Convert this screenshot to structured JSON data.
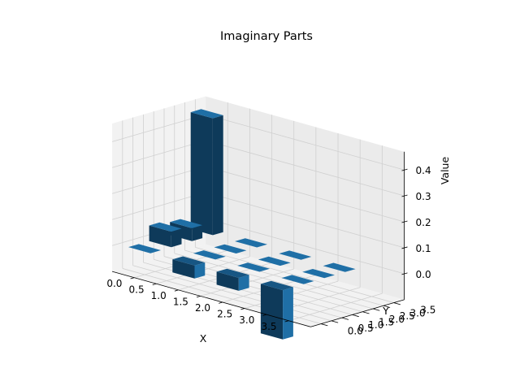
{
  "chart_data": {
    "type": "bar3d",
    "title": "Imaginary Parts",
    "xlabel": "X",
    "ylabel": "Y",
    "zlabel": "Value",
    "x_ticks": [
      "0.0",
      "0.5",
      "1.0",
      "1.5",
      "2.0",
      "2.5",
      "3.0",
      "3.5"
    ],
    "y_ticks": [
      "0.0",
      "0.5",
      "1.0",
      "1.5",
      "2.0",
      "2.5",
      "3.0",
      "3.5"
    ],
    "z_ticks": [
      "0.0",
      "0.1",
      "0.2",
      "0.3",
      "0.4"
    ],
    "xlim": [
      0,
      3.5
    ],
    "ylim": [
      0,
      3.5
    ],
    "zlim": [
      -0.1,
      0.47
    ],
    "grid": true,
    "bar_color": "#1f6fa6",
    "bar_dark_color": "#0e3a5a",
    "bar_mid_color": "#175683",
    "bars": [
      {
        "x": 0,
        "y": 0,
        "value": 0.0
      },
      {
        "x": 1,
        "y": 0,
        "value": -0.05
      },
      {
        "x": 2,
        "y": 0,
        "value": -0.05
      },
      {
        "x": 3,
        "y": 0,
        "value": -0.19
      },
      {
        "x": 0,
        "y": 1,
        "value": 0.06
      },
      {
        "x": 1,
        "y": 1,
        "value": 0.0
      },
      {
        "x": 2,
        "y": 1,
        "value": 0.0
      },
      {
        "x": 3,
        "y": 1,
        "value": 0.0
      },
      {
        "x": 0,
        "y": 2,
        "value": 0.05
      },
      {
        "x": 1,
        "y": 2,
        "value": 0.0
      },
      {
        "x": 2,
        "y": 2,
        "value": 0.0
      },
      {
        "x": 3,
        "y": 2,
        "value": 0.0
      },
      {
        "x": 0,
        "y": 3,
        "value": 0.45
      },
      {
        "x": 1,
        "y": 3,
        "value": 0.0
      },
      {
        "x": 2,
        "y": 3,
        "value": 0.0
      },
      {
        "x": 3,
        "y": 3,
        "value": 0.0
      }
    ]
  }
}
